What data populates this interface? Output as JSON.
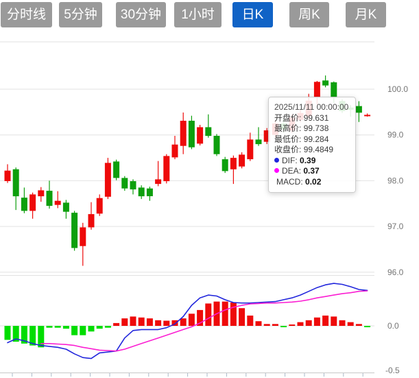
{
  "toolbar": {
    "tabs": [
      {
        "label": "分时线",
        "active": false
      },
      {
        "label": "5分钟",
        "active": false
      },
      {
        "label": "30分钟",
        "active": false
      },
      {
        "label": "1小时",
        "active": false
      },
      {
        "label": "日K",
        "active": true
      },
      {
        "label": "周K",
        "active": false
      },
      {
        "label": "月K",
        "active": false
      }
    ]
  },
  "tooltip": {
    "datetime": "2025/11/11 00:00:00",
    "rows": [
      {
        "label": "开盘价",
        "value": "99.631"
      },
      {
        "label": "最高价",
        "value": "99.738"
      },
      {
        "label": "最低价",
        "value": "99.284"
      },
      {
        "label": "收盘价",
        "value": "99.4849"
      }
    ],
    "indicator_rows": [
      {
        "dot_color": "#2126dc",
        "label": "DIF",
        "value": "0.39"
      },
      {
        "dot_color": "#ff00ff",
        "label": "DEA",
        "value": "0.37"
      },
      {
        "dot_color": null,
        "label": "MACD",
        "value": "0.02"
      }
    ]
  },
  "chart_data": {
    "type": "candlestick+macd",
    "candle_format": [
      "open",
      "high",
      "low",
      "close"
    ],
    "price_axis": {
      "ticks": [
        100.0,
        99.0,
        98.0,
        97.0,
        96.0
      ]
    },
    "macd_axis": {
      "ticks": [
        0.0,
        -0.5
      ]
    },
    "colors": {
      "up": "#ee0a0a",
      "down": "#0d9f0d",
      "hist_up": "#ee0a0a",
      "hist_down": "#00dd00",
      "dif_line": "#2126dc",
      "dea_line": "#fb1ed2",
      "grid": "#e2e2e2",
      "axis_line": "#c8c8c8",
      "tick": "#aab8c8",
      "axis_text": "#757575"
    },
    "candles": [
      [
        97.99,
        98.36,
        97.95,
        98.22
      ],
      [
        98.25,
        98.29,
        97.36,
        97.66
      ],
      [
        97.63,
        97.85,
        97.29,
        97.34
      ],
      [
        97.34,
        97.74,
        97.17,
        97.7
      ],
      [
        97.66,
        97.86,
        97.54,
        97.79
      ],
      [
        97.78,
        98.0,
        97.39,
        97.45
      ],
      [
        97.47,
        97.77,
        97.4,
        97.56
      ],
      [
        97.52,
        97.58,
        97.17,
        97.32
      ],
      [
        97.3,
        97.34,
        96.47,
        96.53
      ],
      [
        96.57,
        97.08,
        96.14,
        96.98
      ],
      [
        96.98,
        97.53,
        96.93,
        97.27
      ],
      [
        97.28,
        97.7,
        97.23,
        97.62
      ],
      [
        97.65,
        98.5,
        97.6,
        98.39
      ],
      [
        98.42,
        98.46,
        98.01,
        98.06
      ],
      [
        98.06,
        98.1,
        97.78,
        97.83
      ],
      [
        97.99,
        98.03,
        97.7,
        97.81
      ],
      [
        97.85,
        97.9,
        97.6,
        97.66
      ],
      [
        97.83,
        97.87,
        97.56,
        97.66
      ],
      [
        97.93,
        98.43,
        97.88,
        98.03
      ],
      [
        97.99,
        98.58,
        97.94,
        98.54
      ],
      [
        98.51,
        98.98,
        98.47,
        98.79
      ],
      [
        98.76,
        99.49,
        98.58,
        99.31
      ],
      [
        99.31,
        99.42,
        98.69,
        98.73
      ],
      [
        98.81,
        99.22,
        98.77,
        99.17
      ],
      [
        99.17,
        99.45,
        98.94,
        98.98
      ],
      [
        98.98,
        99.02,
        98.54,
        98.58
      ],
      [
        98.47,
        98.52,
        98.17,
        98.21
      ],
      [
        98.25,
        98.55,
        97.93,
        98.5
      ],
      [
        98.31,
        98.62,
        98.27,
        98.57
      ],
      [
        98.47,
        99.05,
        98.43,
        98.9
      ],
      [
        98.9,
        99.17,
        98.76,
        98.8
      ],
      [
        98.85,
        99.15,
        98.8,
        99.1
      ],
      [
        99.0,
        99.32,
        98.95,
        99.25
      ],
      [
        99.25,
        99.35,
        99.05,
        99.12
      ],
      [
        99.1,
        99.45,
        99.05,
        99.38
      ],
      [
        99.33,
        99.55,
        99.28,
        99.48
      ],
      [
        99.4,
        99.9,
        99.35,
        99.75
      ],
      [
        99.81,
        100.18,
        99.66,
        100.16
      ],
      [
        100.19,
        100.3,
        100.04,
        100.08
      ],
      [
        100.15,
        100.17,
        99.7,
        99.81
      ],
      [
        99.74,
        99.78,
        99.48,
        99.52
      ],
      [
        99.6,
        99.65,
        99.4,
        99.55
      ],
      [
        99.631,
        99.738,
        99.284,
        99.4849
      ],
      [
        99.42,
        99.47,
        99.4,
        99.44
      ]
    ],
    "macd": {
      "histogram": [
        -0.15,
        -0.17,
        -0.19,
        -0.21,
        -0.23,
        -0.02,
        -0.02,
        -0.03,
        -0.1,
        -0.1,
        -0.06,
        -0.03,
        -0.02,
        0.03,
        0.08,
        0.1,
        0.09,
        0.08,
        0.06,
        0.055,
        0.06,
        0.08,
        0.13,
        0.17,
        0.24,
        0.26,
        0.26,
        0.25,
        0.19,
        0.11,
        0.05,
        0.02,
        0.02,
        -0.01,
        0.01,
        0.04,
        0.06,
        0.09,
        0.11,
        0.1,
        0.06,
        0.04,
        0.02,
        -0.01
      ],
      "dif": [
        -0.18,
        -0.14,
        -0.16,
        -0.19,
        -0.21,
        -0.22,
        -0.23,
        -0.25,
        -0.3,
        -0.34,
        -0.35,
        -0.29,
        -0.28,
        -0.27,
        -0.13,
        -0.05,
        -0.04,
        -0.04,
        -0.04,
        -0.02,
        0.02,
        0.1,
        0.22,
        0.3,
        0.33,
        0.32,
        0.28,
        0.25,
        0.245,
        0.245,
        0.25,
        0.255,
        0.26,
        0.28,
        0.3,
        0.33,
        0.37,
        0.41,
        0.44,
        0.455,
        0.445,
        0.42,
        0.39,
        0.38
      ],
      "dea": [
        null,
        null,
        null,
        null,
        -0.19,
        -0.19,
        -0.195,
        -0.2,
        -0.21,
        -0.23,
        -0.245,
        -0.26,
        -0.265,
        -0.27,
        -0.25,
        -0.22,
        -0.19,
        -0.16,
        -0.13,
        -0.1,
        -0.07,
        -0.04,
        -0.01,
        0.03,
        0.08,
        0.13,
        0.17,
        0.2,
        0.22,
        0.235,
        0.24,
        0.245,
        0.245,
        0.25,
        0.255,
        0.265,
        0.28,
        0.3,
        0.315,
        0.33,
        0.345,
        0.355,
        0.37,
        0.375
      ]
    }
  }
}
